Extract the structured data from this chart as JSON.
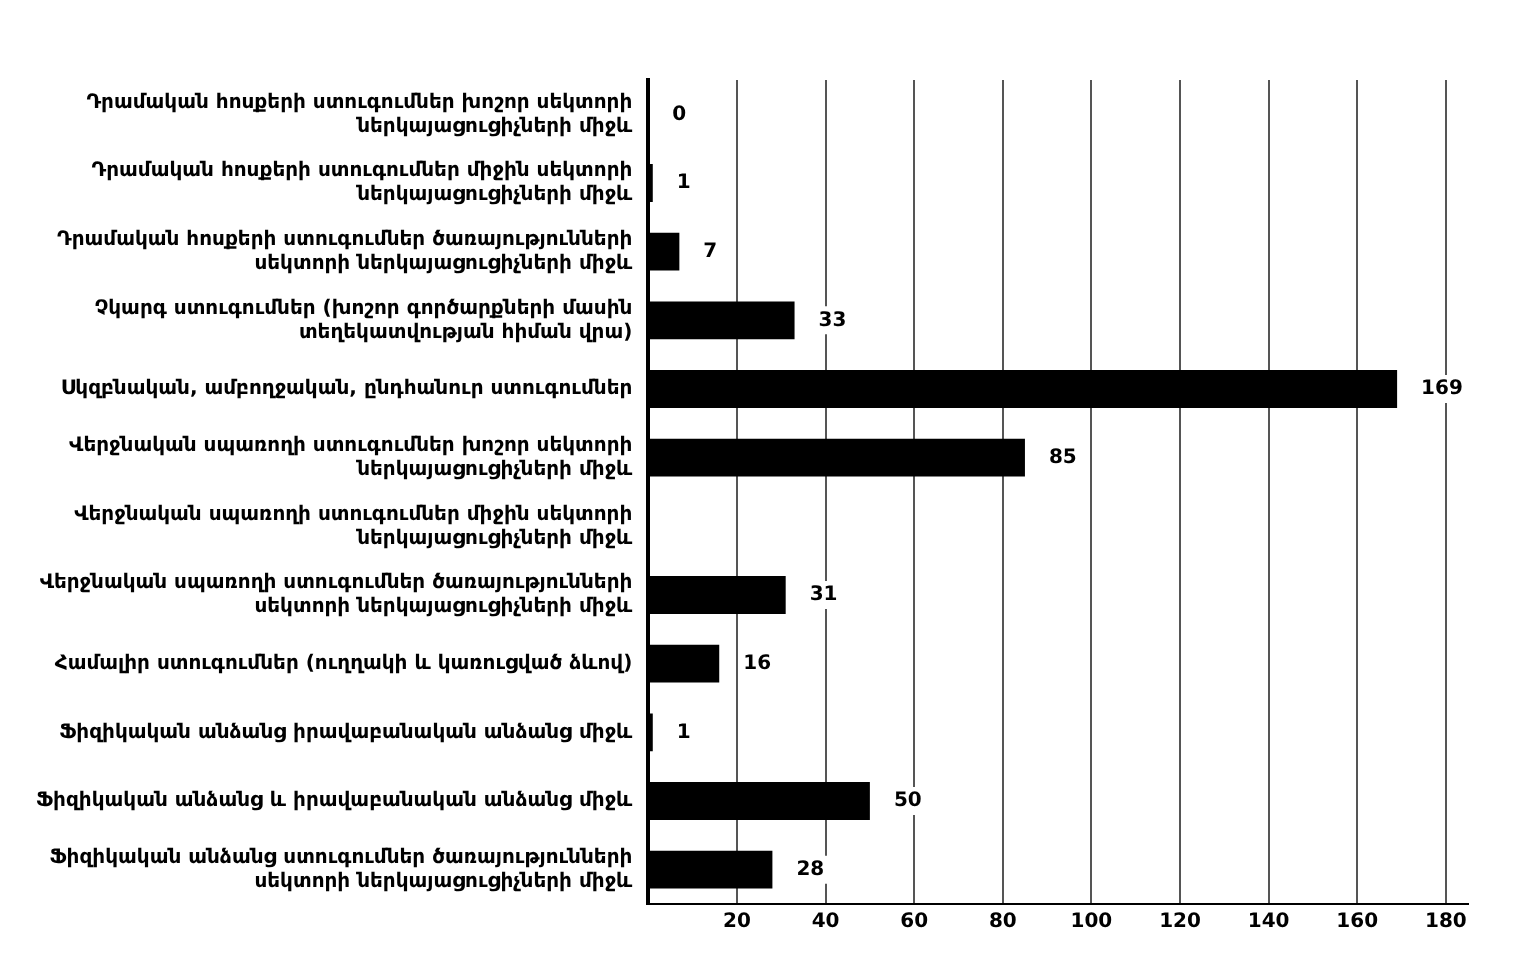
{
  "chart_data": {
    "type": "bar",
    "orientation": "horizontal",
    "categories": [
      "Դրամական հոսքերի ստուգումներ խոշոր սեկտորի ներկայացուցիչների միջև",
      "Դրամական հոսքերի ստուգումներ միջին սեկտորի ներկայացուցիչների միջև",
      "Դրամական հոսքերի ստուգումներ ծառայությունների սեկտորի ներկայացուցիչների միջև",
      "Չկարգ ստուգումներ (խոշոր գործարքների մասին տեղեկատվության հիման վրա)",
      "Սկզբնական, ամբողջական, ընդհանուր ստուգումներ",
      "Վերջնական սպառողի ստուգումներ խոշոր սեկտորի ներկայացուցիչների միջև",
      "Վերջնական սպառողի ստուգումներ միջին սեկտորի ներկայացուցիչների միջև",
      "Վերջնական սպառողի ստուգումներ ծառայությունների սեկտորի ներկայացուցիչների միջև",
      "Համալիր ստուգումներ (ուղղակի և կառուցված ձևով)",
      "Ֆիզիկական անձանց իրավաբանական անձանց միջև",
      "Ֆիզիկական անձանց և իրավաբանական անձանց միջև",
      "Ֆիզիկական անձանց ստուգումներ ծառայությունների սեկտորի ներկայացուցիչների միջև"
    ],
    "values": [
      0,
      1,
      7,
      33,
      169,
      85,
      null,
      31,
      16,
      1,
      50,
      28
    ],
    "color": "#000000",
    "data_labels": true,
    "grid": "x",
    "xlim": [
      0,
      185
    ],
    "xticks": [
      20,
      40,
      60,
      80,
      100,
      120,
      140,
      160,
      180
    ]
  }
}
